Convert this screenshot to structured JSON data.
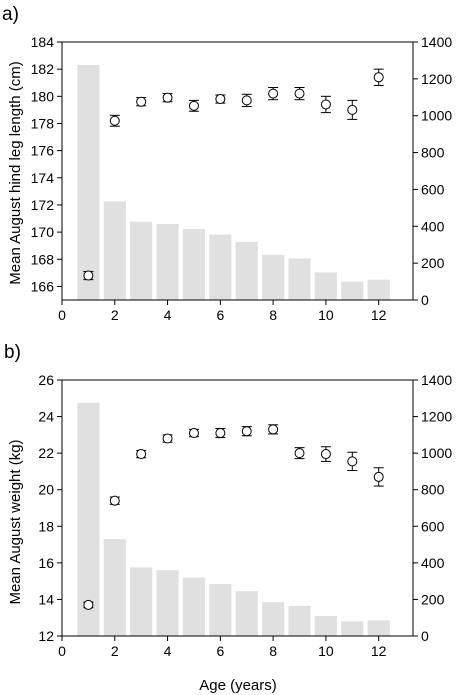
{
  "chart_data": [
    {
      "panel_label": "a)",
      "type": "bar",
      "combined_with": "scatter-errorbar",
      "xlabel": "",
      "ylabel": "Mean August hind leg length (cm)",
      "y2label": "",
      "xlim": [
        0,
        13.3
      ],
      "x_ticks": [
        0,
        2,
        4,
        6,
        8,
        10,
        12
      ],
      "ylim": [
        165,
        184
      ],
      "y_ticks": [
        166,
        168,
        170,
        172,
        174,
        176,
        178,
        180,
        182,
        184
      ],
      "y2lim": [
        0,
        1400
      ],
      "y2_ticks": [
        0,
        200,
        400,
        600,
        800,
        1000,
        1200,
        1400
      ],
      "bar_color": "#e0e0e0",
      "bars": {
        "axis": "right",
        "x": [
          1,
          2,
          3,
          4,
          5,
          6,
          7,
          8,
          9,
          10,
          11,
          12
        ],
        "values": [
          1275,
          535,
          425,
          412,
          385,
          355,
          315,
          245,
          225,
          150,
          100,
          110
        ]
      },
      "points": {
        "axis": "left",
        "x": [
          1,
          2,
          3,
          4,
          5,
          6,
          7,
          8,
          9,
          10,
          11,
          12
        ],
        "values": [
          166.8,
          178.2,
          179.6,
          179.9,
          179.3,
          179.8,
          179.7,
          180.2,
          180.2,
          179.4,
          179.0,
          181.4
        ],
        "errors": [
          0.3,
          0.4,
          0.3,
          0.3,
          0.4,
          0.3,
          0.45,
          0.45,
          0.45,
          0.6,
          0.7,
          0.6
        ]
      }
    },
    {
      "panel_label": "b)",
      "type": "bar",
      "combined_with": "scatter-errorbar",
      "xlabel": "Age (years)",
      "ylabel": "Mean August weight (kg)",
      "y2label": "",
      "xlim": [
        0,
        13.3
      ],
      "x_ticks": [
        0,
        2,
        4,
        6,
        8,
        10,
        12
      ],
      "ylim": [
        12,
        26
      ],
      "y_ticks": [
        12,
        14,
        16,
        18,
        20,
        22,
        24,
        26
      ],
      "y2lim": [
        0,
        1400
      ],
      "y2_ticks": [
        0,
        200,
        400,
        600,
        800,
        1000,
        1200,
        1400
      ],
      "bar_color": "#e0e0e0",
      "bars": {
        "axis": "right",
        "x": [
          1,
          2,
          3,
          4,
          5,
          6,
          7,
          8,
          9,
          10,
          11,
          12
        ],
        "values": [
          1275,
          530,
          375,
          360,
          320,
          285,
          245,
          185,
          165,
          110,
          80,
          85
        ]
      },
      "points": {
        "axis": "left",
        "x": [
          1,
          2,
          3,
          4,
          5,
          6,
          7,
          8,
          9,
          10,
          11,
          12
        ],
        "values": [
          13.7,
          19.4,
          21.95,
          22.8,
          23.1,
          23.1,
          23.2,
          23.3,
          22.0,
          21.95,
          21.55,
          20.7
        ],
        "errors": [
          0.15,
          0.2,
          0.2,
          0.2,
          0.2,
          0.25,
          0.25,
          0.25,
          0.3,
          0.4,
          0.5,
          0.5
        ]
      }
    }
  ]
}
